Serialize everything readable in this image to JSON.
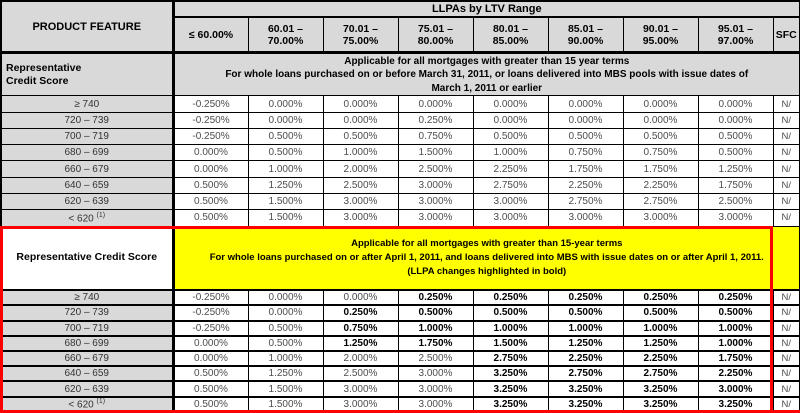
{
  "table": {
    "corner_label": "PRODUCT FEATURE",
    "title": "LLPAs by LTV Range",
    "ltv_headers": [
      "≤ 60.00%",
      "60.01 –\n70.00%",
      "70.01 –\n75.00%",
      "75.01 –\n80.00%",
      "80.01 –\n85.00%",
      "85.01 –\n90.00%",
      "90.01 –\n95.00%",
      "95.01 –\n97.00%"
    ],
    "sfc_header": "SFC",
    "sections": [
      {
        "label": "Representative\nCredit Score",
        "note": "Applicable for all mortgages with greater than 15 year terms\nFor whole loans purchased on or before March 31, 2011, or loans delivered into MBS pools with issue dates of\nMarch 1, 2011 or earlier",
        "highlighted": false,
        "rows": [
          {
            "label": "≥ 740",
            "cells": [
              {
                "v": "-0.250%"
              },
              {
                "v": "0.000%"
              },
              {
                "v": "0.000%"
              },
              {
                "v": "0.000%"
              },
              {
                "v": "0.000%"
              },
              {
                "v": "0.000%"
              },
              {
                "v": "0.000%"
              },
              {
                "v": "0.000%"
              }
            ],
            "sfc": "N/"
          },
          {
            "label": "720 – 739",
            "cells": [
              {
                "v": "-0.250%"
              },
              {
                "v": "0.000%"
              },
              {
                "v": "0.000%"
              },
              {
                "v": "0.250%"
              },
              {
                "v": "0.000%"
              },
              {
                "v": "0.000%"
              },
              {
                "v": "0.000%"
              },
              {
                "v": "0.000%"
              }
            ],
            "sfc": "N/"
          },
          {
            "label": "700 – 719",
            "cells": [
              {
                "v": "-0.250%"
              },
              {
                "v": "0.500%"
              },
              {
                "v": "0.500%"
              },
              {
                "v": "0.750%"
              },
              {
                "v": "0.500%"
              },
              {
                "v": "0.500%"
              },
              {
                "v": "0.500%"
              },
              {
                "v": "0.500%"
              }
            ],
            "sfc": "N/"
          },
          {
            "label": "680 – 699",
            "cells": [
              {
                "v": "0.000%"
              },
              {
                "v": "0.500%"
              },
              {
                "v": "1.000%"
              },
              {
                "v": "1.500%"
              },
              {
                "v": "1.000%"
              },
              {
                "v": "0.750%"
              },
              {
                "v": "0.750%"
              },
              {
                "v": "0.500%"
              }
            ],
            "sfc": "N/"
          },
          {
            "label": "660 – 679",
            "cells": [
              {
                "v": "0.000%"
              },
              {
                "v": "1.000%"
              },
              {
                "v": "2.000%"
              },
              {
                "v": "2.500%"
              },
              {
                "v": "2.250%"
              },
              {
                "v": "1.750%"
              },
              {
                "v": "1.750%"
              },
              {
                "v": "1.250%"
              }
            ],
            "sfc": "N/"
          },
          {
            "label": "640 – 659",
            "cells": [
              {
                "v": "0.500%"
              },
              {
                "v": "1.250%"
              },
              {
                "v": "2.500%"
              },
              {
                "v": "3.000%"
              },
              {
                "v": "2.750%"
              },
              {
                "v": "2.250%"
              },
              {
                "v": "2.250%"
              },
              {
                "v": "1.750%"
              }
            ],
            "sfc": "N/"
          },
          {
            "label": "620 – 639",
            "cells": [
              {
                "v": "0.500%"
              },
              {
                "v": "1.500%"
              },
              {
                "v": "3.000%"
              },
              {
                "v": "3.000%"
              },
              {
                "v": "3.000%"
              },
              {
                "v": "2.750%"
              },
              {
                "v": "2.750%"
              },
              {
                "v": "2.500%"
              }
            ],
            "sfc": "N/"
          },
          {
            "label": "< 620",
            "sup": "(1)",
            "cells": [
              {
                "v": "0.500%"
              },
              {
                "v": "1.500%"
              },
              {
                "v": "3.000%"
              },
              {
                "v": "3.000%"
              },
              {
                "v": "3.000%"
              },
              {
                "v": "3.000%"
              },
              {
                "v": "3.000%"
              },
              {
                "v": "3.000%"
              }
            ],
            "sfc": "N/"
          }
        ]
      },
      {
        "label": "Representative Credit Score",
        "note": "Applicable for all mortgages with greater than 15-year terms\nFor whole loans purchased on or after April 1, 2011, and loans delivered into MBS with issue dates on or after April 1, 2011.\n(LLPA changes highlighted in bold)",
        "highlighted": true,
        "rows": [
          {
            "label": "≥ 740",
            "cells": [
              {
                "v": "-0.250%"
              },
              {
                "v": "0.000%"
              },
              {
                "v": "0.000%"
              },
              {
                "v": "0.250%",
                "b": true
              },
              {
                "v": "0.250%",
                "b": true
              },
              {
                "v": "0.250%",
                "b": true
              },
              {
                "v": "0.250%",
                "b": true
              },
              {
                "v": "0.250%",
                "b": true
              }
            ],
            "sfc": "N/"
          },
          {
            "label": "720 – 739",
            "cells": [
              {
                "v": "-0.250%"
              },
              {
                "v": "0.000%"
              },
              {
                "v": "0.250%",
                "b": true
              },
              {
                "v": "0.500%",
                "b": true
              },
              {
                "v": "0.500%",
                "b": true
              },
              {
                "v": "0.500%",
                "b": true
              },
              {
                "v": "0.500%",
                "b": true
              },
              {
                "v": "0.500%",
                "b": true
              }
            ],
            "sfc": "N/"
          },
          {
            "label": "700 – 719",
            "cells": [
              {
                "v": "-0.250%"
              },
              {
                "v": "0.500%"
              },
              {
                "v": "0.750%",
                "b": true
              },
              {
                "v": "1.000%",
                "b": true
              },
              {
                "v": "1.000%",
                "b": true
              },
              {
                "v": "1.000%",
                "b": true
              },
              {
                "v": "1.000%",
                "b": true
              },
              {
                "v": "1.000%",
                "b": true
              }
            ],
            "sfc": "N/"
          },
          {
            "label": "680 – 699",
            "cells": [
              {
                "v": "0.000%"
              },
              {
                "v": "0.500%"
              },
              {
                "v": "1.250%",
                "b": true
              },
              {
                "v": "1.750%",
                "b": true
              },
              {
                "v": "1.500%",
                "b": true
              },
              {
                "v": "1.250%",
                "b": true
              },
              {
                "v": "1.250%",
                "b": true
              },
              {
                "v": "1.000%",
                "b": true
              }
            ],
            "sfc": "N/"
          },
          {
            "label": "660 – 679",
            "cells": [
              {
                "v": "0.000%"
              },
              {
                "v": "1.000%"
              },
              {
                "v": "2.000%"
              },
              {
                "v": "2.500%"
              },
              {
                "v": "2.750%",
                "b": true
              },
              {
                "v": "2.250%",
                "b": true
              },
              {
                "v": "2.250%",
                "b": true
              },
              {
                "v": "1.750%",
                "b": true
              }
            ],
            "sfc": "N/"
          },
          {
            "label": "640 – 659",
            "cells": [
              {
                "v": "0.500%"
              },
              {
                "v": "1.250%"
              },
              {
                "v": "2.500%"
              },
              {
                "v": "3.000%"
              },
              {
                "v": "3.250%",
                "b": true
              },
              {
                "v": "2.750%",
                "b": true
              },
              {
                "v": "2.750%",
                "b": true
              },
              {
                "v": "2.250%",
                "b": true
              }
            ],
            "sfc": "N/"
          },
          {
            "label": "620 – 639",
            "cells": [
              {
                "v": "0.500%"
              },
              {
                "v": "1.500%"
              },
              {
                "v": "3.000%"
              },
              {
                "v": "3.000%"
              },
              {
                "v": "3.250%",
                "b": true
              },
              {
                "v": "3.250%",
                "b": true
              },
              {
                "v": "3.250%",
                "b": true
              },
              {
                "v": "3.000%",
                "b": true
              }
            ],
            "sfc": "N/"
          },
          {
            "label": "< 620",
            "sup": "(1)",
            "cells": [
              {
                "v": "0.500%"
              },
              {
                "v": "1.500%"
              },
              {
                "v": "3.000%"
              },
              {
                "v": "3.000%"
              },
              {
                "v": "3.250%",
                "b": true
              },
              {
                "v": "3.250%",
                "b": true
              },
              {
                "v": "3.250%",
                "b": true
              },
              {
                "v": "3.250%",
                "b": true
              }
            ],
            "sfc": "N/"
          }
        ]
      }
    ]
  },
  "colors": {
    "header_gray": "#d9d9d9",
    "highlight_yellow": "#ffff00",
    "highlight_red": "#ff0000",
    "border_black": "#000000"
  }
}
